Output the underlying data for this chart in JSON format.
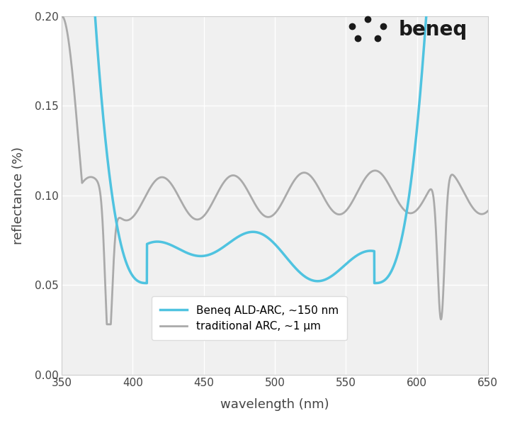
{
  "xlabel": "wavelength (nm)",
  "ylabel": "reflectance (%)",
  "xlim": [
    350,
    650
  ],
  "ylim": [
    0,
    0.2
  ],
  "yticks": [
    0,
    0.05,
    0.1,
    0.15,
    0.2
  ],
  "xticks": [
    350,
    400,
    450,
    500,
    550,
    600,
    650
  ],
  "background_color": "#ffffff",
  "plot_bg_color": "#f0f0f0",
  "grid_color": "#ffffff",
  "beneq_color": "#4fc3e0",
  "trad_color": "#aaaaaa",
  "legend_labels": [
    "Beneq ALD-ARC, ~150 nm",
    "traditional ARC, ~1 μm"
  ],
  "beneq_linewidth": 2.5,
  "trad_linewidth": 2.0,
  "xlabel_fontsize": 13,
  "ylabel_fontsize": 13,
  "tick_fontsize": 11,
  "legend_fontsize": 11
}
